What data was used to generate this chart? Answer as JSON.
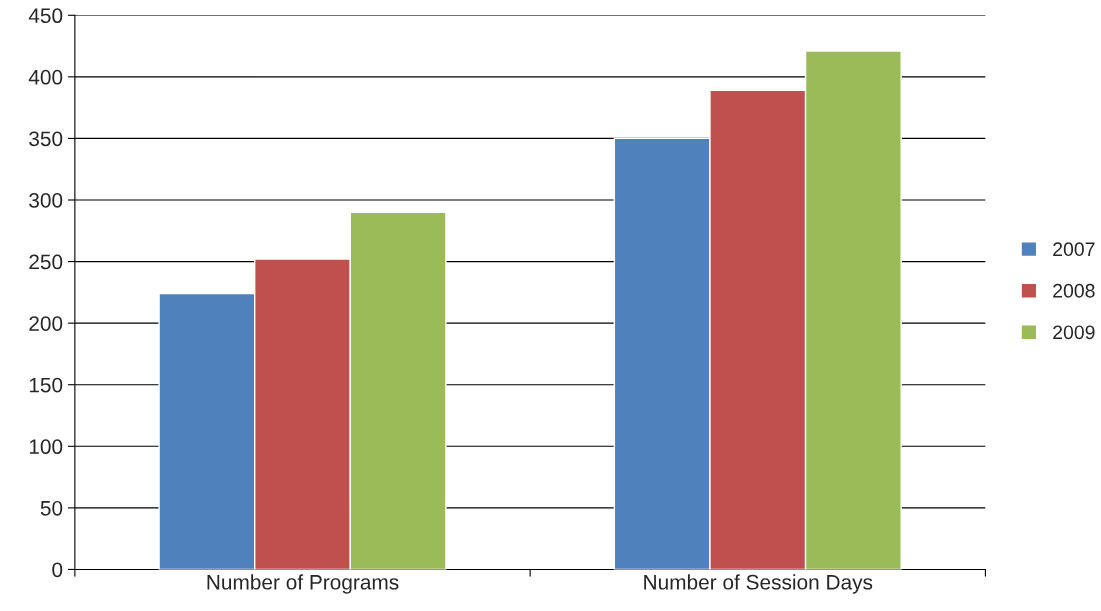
{
  "chart_data": {
    "type": "bar",
    "categories": [
      "Number of Programs",
      "Number of Session Days"
    ],
    "series": [
      {
        "name": "2007",
        "color": "#4f81bd",
        "values": [
          224,
          350
        ]
      },
      {
        "name": "2008",
        "color": "#c0504d",
        "values": [
          252,
          389
        ]
      },
      {
        "name": "2009",
        "color": "#9bbb59",
        "values": [
          290,
          421
        ]
      }
    ],
    "ylim": [
      0,
      450
    ],
    "yticks": [
      0,
      50,
      100,
      150,
      200,
      250,
      300,
      350,
      400,
      450
    ],
    "grid": "y",
    "legend": "right"
  }
}
